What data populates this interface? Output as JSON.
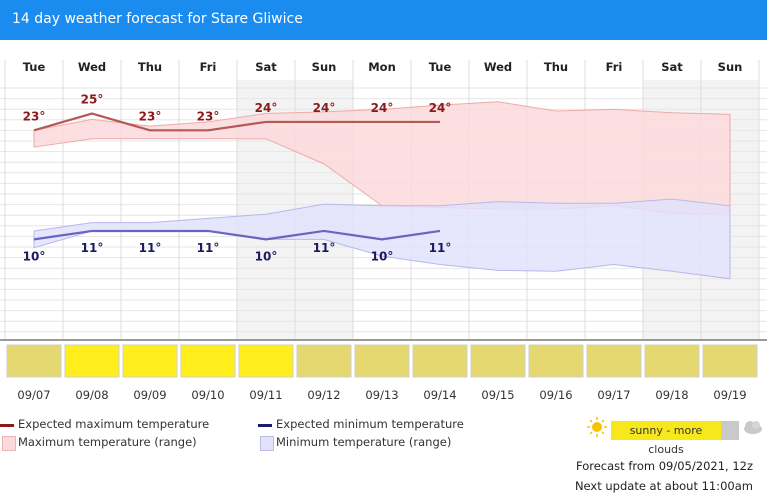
{
  "title": "14 day weather forecast for Stare Gliwice",
  "chart_data": {
    "type": "line",
    "days": [
      "Tue",
      "Wed",
      "Thu",
      "Fri",
      "Sat",
      "Sun",
      "Mon",
      "Tue",
      "Wed",
      "Thu",
      "Fri",
      "Sat",
      "Sun"
    ],
    "dates": [
      "09/07",
      "09/08",
      "09/09",
      "09/10",
      "09/11",
      "09/12",
      "09/13",
      "09/14",
      "09/15",
      "09/16",
      "09/17",
      "09/18",
      "09/19"
    ],
    "weekend_days": [
      4,
      5,
      11,
      12
    ],
    "expected_max": [
      23,
      25,
      23,
      23,
      24,
      24,
      24,
      24
    ],
    "expected_min": [
      10,
      11,
      11,
      11,
      10,
      11,
      10,
      11
    ],
    "max_range_high": [
      23,
      24.3,
      23.5,
      24,
      25,
      25.2,
      25.5,
      26,
      26.4,
      25.3,
      25.5,
      25.1,
      24.9
    ],
    "max_range_low": [
      21,
      22,
      22,
      22,
      22,
      19,
      14,
      13.8,
      13.6,
      13.6,
      14,
      13.1,
      13
    ],
    "min_range_high": [
      11,
      12,
      12,
      12.5,
      13,
      14.2,
      14,
      14,
      14.5,
      14.3,
      14.3,
      14.8,
      14
    ],
    "min_range_low": [
      9,
      11,
      11,
      11,
      10,
      10,
      8,
      7,
      6.3,
      6.2,
      7,
      6.2,
      5.3
    ],
    "conditions": [
      "sunny - more clouds",
      "sunny",
      "sunny",
      "sunny",
      "sunny",
      "sunny - more clouds",
      "sunny - more clouds",
      "sunny - more clouds",
      "sunny - more clouds",
      "sunny - more clouds",
      "sunny - more clouds",
      "sunny - more clouds",
      "sunny - more clouds"
    ],
    "ylim": [
      -2,
      29
    ],
    "colors": {
      "max_line": "#b55858",
      "max_band": "#fcd9db",
      "min_line": "#6a64bf",
      "min_band": "#e2e2fb",
      "max_label": "#8a1a1a",
      "min_label": "#1a1a5e",
      "sunny": "#ffee1c",
      "more_clouds": "#e6d871"
    }
  },
  "legend": {
    "max_expected": "Expected maximum temperature",
    "min_expected": "Expected minimum temperature",
    "max_range": "Maximum temperature (range)",
    "min_range": "Minimum temperature (range)",
    "condition": "sunny - more clouds"
  },
  "footer": {
    "forecast_from": "Forecast from 09/05/2021, 12z",
    "next_update": "Next update at about 11:00am"
  }
}
